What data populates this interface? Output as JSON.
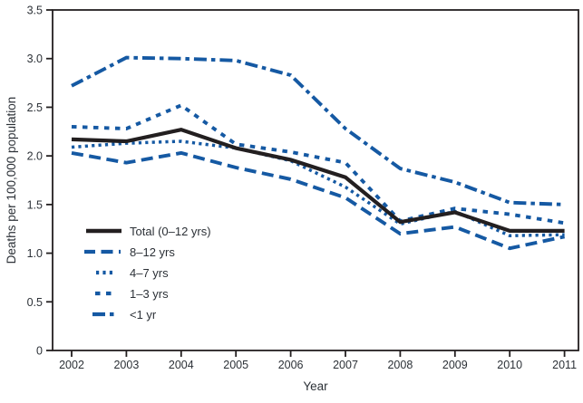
{
  "chart_data": {
    "type": "line",
    "title": "",
    "xlabel": "Year",
    "ylabel": "Deaths per 100,000 population",
    "x": [
      2002,
      2003,
      2004,
      2005,
      2006,
      2007,
      2008,
      2009,
      2010,
      2011
    ],
    "ylim": [
      0,
      3.5
    ],
    "ytick_labels": [
      "0",
      "0.5",
      "1.0",
      "1.5",
      "2.0",
      "2.5",
      "3.0",
      "3.5"
    ],
    "grid": false,
    "legend_position": "inside-lower-left",
    "axis_color": "#231f20",
    "text_color": "#2c3137",
    "series": [
      {
        "name": "Total (0–12 yrs)",
        "style": "solid",
        "color": "#231f20",
        "values": [
          2.17,
          2.15,
          2.27,
          2.08,
          1.96,
          1.78,
          1.32,
          1.42,
          1.23,
          1.23
        ]
      },
      {
        "name": "8–12 yrs",
        "style": "long-dash",
        "color": "#1559a3",
        "values": [
          2.03,
          1.93,
          2.03,
          1.88,
          1.76,
          1.57,
          1.2,
          1.27,
          1.05,
          1.17
        ]
      },
      {
        "name": "4–7 yrs",
        "style": "fine-dot",
        "color": "#1559a3",
        "values": [
          2.09,
          2.13,
          2.15,
          2.08,
          1.95,
          1.68,
          1.3,
          1.43,
          1.18,
          1.19
        ]
      },
      {
        "name": "1–3 yrs",
        "style": "short-dash",
        "color": "#1559a3",
        "values": [
          2.3,
          2.28,
          2.52,
          2.12,
          2.04,
          1.93,
          1.33,
          1.46,
          1.4,
          1.31
        ]
      },
      {
        "name": "<1 yr",
        "style": "dash-dot",
        "color": "#1559a3",
        "values": [
          2.72,
          3.01,
          3.0,
          2.98,
          2.83,
          2.28,
          1.87,
          1.73,
          1.52,
          1.5
        ]
      }
    ]
  }
}
